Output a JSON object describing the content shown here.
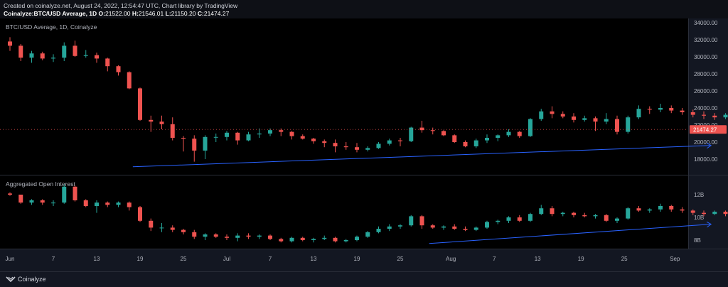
{
  "header": {
    "created": "Created on coinalyze.net, August 24, 2022, 12:54:47 UTC, Chart library by TradingView",
    "symbol": "Coinalyze:BTC/USD Average, 1D",
    "o_key": "O:",
    "o_val": "21522.00",
    "h_key": "H:",
    "h_val": "21546.01",
    "l_key": "L:",
    "l_val": "21150.20",
    "c_key": "C:",
    "c_val": "21474.27"
  },
  "footer": {
    "brand": "Coinalyze"
  },
  "colors": {
    "up": "#26a69a",
    "down": "#ef5350",
    "trend": "#2962ff",
    "last_price_bg": "#ef5350",
    "background": "#000000"
  },
  "chart_data": [
    {
      "type": "candlestick",
      "title": "BTC/USD Average, 1D, Coinalyze",
      "ylim": [
        16000,
        35000
      ],
      "y_ticks": [
        "34000.00",
        "32000.00",
        "30000.00",
        "28000.00",
        "26000.00",
        "24000.00",
        "22000.00",
        "20000.00",
        "18000.00"
      ],
      "y_tick_values": [
        34000,
        32000,
        30000,
        28000,
        26000,
        24000,
        22000,
        20000,
        18000
      ],
      "last_price_label": "21474.27",
      "last_price": 21474.27,
      "x_start_day": 1,
      "x_step_days": 1.5,
      "ohlc": [
        [
          31800,
          32300,
          30700,
          31300
        ],
        [
          31300,
          31500,
          29500,
          29900
        ],
        [
          29900,
          30700,
          29300,
          30400
        ],
        [
          30400,
          30600,
          29600,
          29800
        ],
        [
          29800,
          30300,
          29400,
          29900
        ],
        [
          29900,
          31700,
          29500,
          31300
        ],
        [
          31300,
          31900,
          30000,
          30100
        ],
        [
          30100,
          30800,
          29900,
          30200
        ],
        [
          30200,
          30500,
          29300,
          29800
        ],
        [
          29800,
          29900,
          28300,
          28900
        ],
        [
          28900,
          29000,
          27800,
          28200
        ],
        [
          28200,
          28300,
          26200,
          26300
        ],
        [
          26300,
          26400,
          22500,
          22600
        ],
        [
          22600,
          23100,
          21200,
          22400
        ],
        [
          22400,
          23100,
          21500,
          22100
        ],
        [
          22100,
          22900,
          20200,
          20500
        ],
        [
          20500,
          20700,
          18900,
          20400
        ],
        [
          20400,
          20800,
          17700,
          19000
        ],
        [
          19000,
          20800,
          18000,
          20600
        ],
        [
          20600,
          21000,
          20000,
          20600
        ],
        [
          20600,
          21300,
          20200,
          21100
        ],
        [
          21100,
          21200,
          19700,
          20200
        ],
        [
          20200,
          21200,
          20100,
          20900
        ],
        [
          20900,
          21600,
          20500,
          21000
        ],
        [
          21000,
          21600,
          20700,
          21400
        ],
        [
          21400,
          21600,
          20700,
          21200
        ],
        [
          21200,
          21300,
          20300,
          20700
        ],
        [
          20700,
          20900,
          20300,
          20400
        ],
        [
          20400,
          20500,
          19800,
          20100
        ],
        [
          20100,
          20300,
          19400,
          19900
        ],
        [
          19900,
          20300,
          18800,
          19500
        ],
        [
          19500,
          20000,
          19100,
          19400
        ],
        [
          19400,
          19900,
          18800,
          19100
        ],
        [
          19100,
          19500,
          18900,
          19300
        ],
        [
          19300,
          20000,
          19200,
          19800
        ],
        [
          19800,
          20400,
          19600,
          20200
        ],
        [
          20200,
          20500,
          19500,
          20100
        ],
        [
          20100,
          21800,
          20000,
          21700
        ],
        [
          21700,
          22500,
          21100,
          21400
        ],
        [
          21400,
          21700,
          20900,
          21300
        ],
        [
          21300,
          21400,
          20700,
          20800
        ],
        [
          20800,
          20900,
          19900,
          20000
        ],
        [
          20000,
          20200,
          19400,
          19500
        ],
        [
          19500,
          20400,
          19300,
          20200
        ],
        [
          20200,
          20900,
          19900,
          20500
        ],
        [
          20500,
          20900,
          20100,
          20800
        ],
        [
          20800,
          21500,
          20600,
          21200
        ],
        [
          21200,
          21300,
          20500,
          20700
        ],
        [
          20700,
          22800,
          20600,
          22700
        ],
        [
          22700,
          23900,
          22500,
          23600
        ],
        [
          23600,
          24200,
          22800,
          23300
        ],
        [
          23300,
          23600,
          22800,
          23000
        ],
        [
          23000,
          23400,
          22300,
          22600
        ],
        [
          22600,
          23100,
          22400,
          22800
        ],
        [
          22800,
          23000,
          21300,
          22400
        ],
        [
          22400,
          23400,
          22100,
          22700
        ],
        [
          22700,
          23100,
          20900,
          21200
        ],
        [
          21200,
          23100,
          21000,
          22900
        ],
        [
          22900,
          24300,
          22700,
          23900
        ],
        [
          23900,
          24200,
          23300,
          23800
        ],
        [
          23800,
          24500,
          23500,
          24000
        ],
        [
          24000,
          24300,
          23400,
          23700
        ],
        [
          23700,
          24000,
          23200,
          23500
        ],
        [
          23500,
          23800,
          22900,
          23200
        ],
        [
          23200,
          23600,
          22700,
          23100
        ],
        [
          23100,
          23400,
          22600,
          22900
        ],
        [
          22900,
          23400,
          22700,
          23200
        ],
        [
          23200,
          23600,
          22800,
          23100
        ],
        [
          23100,
          23700,
          22900,
          23400
        ],
        [
          23400,
          23800,
          23100,
          23300
        ],
        [
          23300,
          24400,
          23200,
          24200
        ],
        [
          24200,
          24500,
          23600,
          23700
        ],
        [
          23700,
          24300,
          22900,
          24200
        ],
        [
          24200,
          24900,
          24000,
          24400
        ],
        [
          24400,
          24600,
          23800,
          24100
        ],
        [
          24100,
          24900,
          23800,
          24500
        ],
        [
          24500,
          25300,
          24200,
          24400
        ],
        [
          24400,
          24700,
          23900,
          24200
        ],
        [
          24200,
          24400,
          23400,
          23700
        ],
        [
          23700,
          24000,
          23100,
          23300
        ],
        [
          23300,
          23400,
          20800,
          20900
        ],
        [
          20900,
          21500,
          20700,
          21300
        ],
        [
          21300,
          21800,
          21100,
          21500
        ],
        [
          21500,
          21700,
          21100,
          21400
        ],
        [
          21400,
          21700,
          21200,
          21500
        ],
        [
          21522,
          21546.01,
          21150.2,
          21474.27
        ]
      ],
      "trendline": [
        [
          18,
          17100
        ],
        [
          98,
          19600
        ]
      ]
    },
    {
      "type": "candlestick",
      "title": "Aggregated Open Interest",
      "ylim": [
        7.4,
        13.0
      ],
      "y_ticks": [
        "12B",
        "10B",
        "8B"
      ],
      "y_tick_values": [
        12,
        10,
        8
      ],
      "value_unit": "B",
      "x_start_day": 1,
      "x_step_days": 1.5,
      "ohlc": [
        [
          12.1,
          12.2,
          11.9,
          12.0
        ],
        [
          12.0,
          12.0,
          11.2,
          11.3
        ],
        [
          11.3,
          11.6,
          11.1,
          11.5
        ],
        [
          11.5,
          11.6,
          11.1,
          11.3
        ],
        [
          11.3,
          11.5,
          11.0,
          11.3
        ],
        [
          11.3,
          12.9,
          11.2,
          12.7
        ],
        [
          12.7,
          12.8,
          11.4,
          11.5
        ],
        [
          11.5,
          11.6,
          10.9,
          11.0
        ],
        [
          11.0,
          11.5,
          10.4,
          11.3
        ],
        [
          11.3,
          11.4,
          10.9,
          11.1
        ],
        [
          11.1,
          11.4,
          10.9,
          11.3
        ],
        [
          11.3,
          11.4,
          10.6,
          10.9
        ],
        [
          10.9,
          11.0,
          9.6,
          9.7
        ],
        [
          9.7,
          9.9,
          8.8,
          9.1
        ],
        [
          9.1,
          9.5,
          8.7,
          9.1
        ],
        [
          9.1,
          9.3,
          8.7,
          8.9
        ],
        [
          8.9,
          9.0,
          8.5,
          8.7
        ],
        [
          8.7,
          8.9,
          8.1,
          8.3
        ],
        [
          8.3,
          8.6,
          8.0,
          8.5
        ],
        [
          8.5,
          8.6,
          8.2,
          8.3
        ],
        [
          8.3,
          8.5,
          8.0,
          8.2
        ],
        [
          8.2,
          8.6,
          7.9,
          8.4
        ],
        [
          8.4,
          8.6,
          8.1,
          8.3
        ],
        [
          8.3,
          8.5,
          8.1,
          8.4
        ],
        [
          8.4,
          8.5,
          8.0,
          8.1
        ],
        [
          8.1,
          8.2,
          7.8,
          7.9
        ],
        [
          7.9,
          8.3,
          7.8,
          8.2
        ],
        [
          8.2,
          8.3,
          7.9,
          8.0
        ],
        [
          8.0,
          8.2,
          7.8,
          8.1
        ],
        [
          8.1,
          8.4,
          8.0,
          8.2
        ],
        [
          8.2,
          8.3,
          7.8,
          7.9
        ],
        [
          7.9,
          8.1,
          7.8,
          8.0
        ],
        [
          8.0,
          8.4,
          7.9,
          8.3
        ],
        [
          8.3,
          8.8,
          8.2,
          8.7
        ],
        [
          8.7,
          9.2,
          8.6,
          9.0
        ],
        [
          9.0,
          9.4,
          8.8,
          9.2
        ],
        [
          9.2,
          9.4,
          9.0,
          9.3
        ],
        [
          9.3,
          10.2,
          9.2,
          10.1
        ],
        [
          10.1,
          10.2,
          9.0,
          9.3
        ],
        [
          9.3,
          9.4,
          9.0,
          9.1
        ],
        [
          9.1,
          9.3,
          8.9,
          9.2
        ],
        [
          9.2,
          9.4,
          8.9,
          9.0
        ],
        [
          9.0,
          9.2,
          8.8,
          8.9
        ],
        [
          8.9,
          9.2,
          8.8,
          9.1
        ],
        [
          9.1,
          9.7,
          9.0,
          9.6
        ],
        [
          9.6,
          9.8,
          9.4,
          9.7
        ],
        [
          9.7,
          10.1,
          9.5,
          10.0
        ],
        [
          10.0,
          10.2,
          9.6,
          9.7
        ],
        [
          9.7,
          10.4,
          9.6,
          10.3
        ],
        [
          10.3,
          11.1,
          10.2,
          10.8
        ],
        [
          10.8,
          11.0,
          10.1,
          10.3
        ],
        [
          10.3,
          10.5,
          10.1,
          10.4
        ],
        [
          10.4,
          10.5,
          10.0,
          10.2
        ],
        [
          10.2,
          10.4,
          10.0,
          10.1
        ],
        [
          10.1,
          10.3,
          9.9,
          10.2
        ],
        [
          10.2,
          10.3,
          9.6,
          9.7
        ],
        [
          9.7,
          10.0,
          9.5,
          9.9
        ],
        [
          9.9,
          10.9,
          9.8,
          10.8
        ],
        [
          10.8,
          11.0,
          10.5,
          10.6
        ],
        [
          10.6,
          10.8,
          10.4,
          10.7
        ],
        [
          10.7,
          11.2,
          10.5,
          11.0
        ],
        [
          11.0,
          11.1,
          10.5,
          10.7
        ],
        [
          10.7,
          10.9,
          10.4,
          10.6
        ],
        [
          10.6,
          10.7,
          10.2,
          10.4
        ],
        [
          10.4,
          10.6,
          10.1,
          10.3
        ],
        [
          10.3,
          10.6,
          10.2,
          10.5
        ],
        [
          10.5,
          10.6,
          10.1,
          10.3
        ],
        [
          10.3,
          10.6,
          10.2,
          10.4
        ],
        [
          10.4,
          10.8,
          10.3,
          10.6
        ],
        [
          10.6,
          10.7,
          10.2,
          10.4
        ],
        [
          10.4,
          11.1,
          10.3,
          11.0
        ],
        [
          11.0,
          11.2,
          10.4,
          10.5
        ],
        [
          10.5,
          11.1,
          10.4,
          10.9
        ],
        [
          10.9,
          11.1,
          10.5,
          10.7
        ],
        [
          10.7,
          11.1,
          10.5,
          11.0
        ],
        [
          11.0,
          11.5,
          10.7,
          10.8
        ],
        [
          10.8,
          11.0,
          10.3,
          10.5
        ],
        [
          10.5,
          10.9,
          10.3,
          10.8
        ],
        [
          10.8,
          10.9,
          10.2,
          10.3
        ],
        [
          10.3,
          10.9,
          10.2,
          10.8
        ],
        [
          10.8,
          10.9,
          9.6,
          9.8
        ],
        [
          9.8,
          10.0,
          9.5,
          9.9
        ],
        [
          9.9,
          10.1,
          9.7,
          10.0
        ],
        [
          10.0,
          10.2,
          9.8,
          10.0
        ],
        [
          10.0,
          10.2,
          9.9,
          10.1
        ],
        [
          10.1,
          10.2,
          9.9,
          10.0
        ]
      ],
      "trendline": [
        [
          59,
          7.7
        ],
        [
          98,
          9.4
        ]
      ]
    }
  ],
  "x_axis": {
    "labels": [
      "Jun",
      "7",
      "13",
      "19",
      "25",
      "Jul",
      "7",
      "13",
      "19",
      "25",
      "Aug",
      "7",
      "13",
      "19",
      "25",
      "Sep"
    ],
    "label_days": [
      1,
      7,
      13,
      19,
      25,
      31,
      37,
      43,
      49,
      55,
      62,
      68,
      74,
      80,
      86,
      93
    ]
  }
}
